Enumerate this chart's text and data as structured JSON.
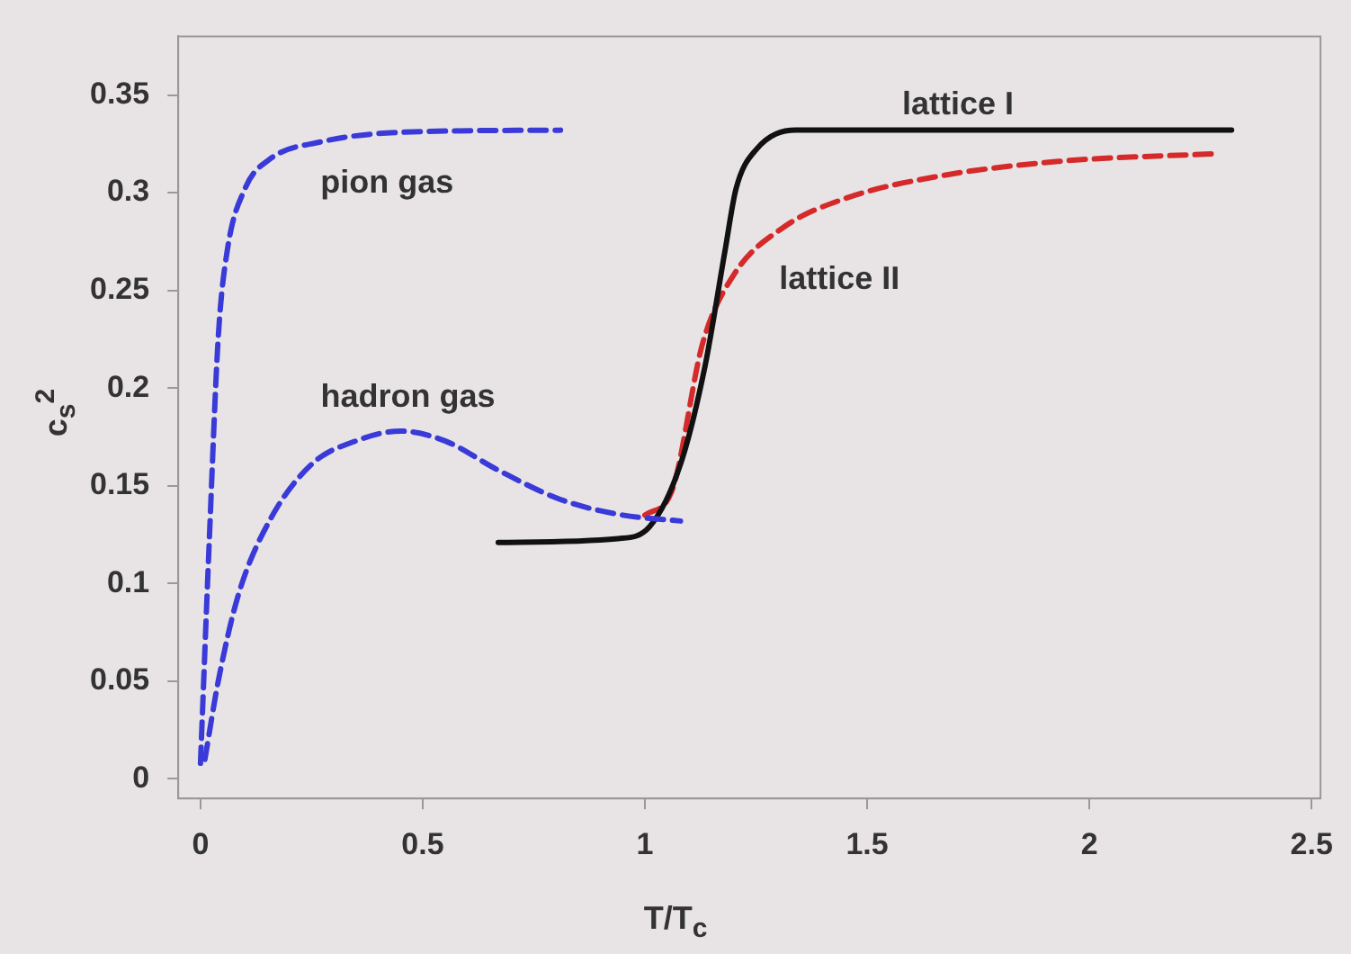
{
  "chart_data": {
    "type": "line",
    "xlabel": "T/T$_{c}$",
    "ylabel": "c$_{s}$$^{2}$",
    "xlim": [
      -0.05,
      2.52
    ],
    "xticks": [
      {
        "value": 0,
        "label": "0"
      },
      {
        "value": 0.5,
        "label": "0.5"
      },
      {
        "value": 1,
        "label": "1"
      },
      {
        "value": 1.5,
        "label": "1.5"
      },
      {
        "value": 2,
        "label": "2"
      },
      {
        "value": 2.5,
        "label": "2.5"
      }
    ],
    "ylim": [
      -0.01,
      0.38
    ],
    "yticks": [
      {
        "value": 0,
        "label": "0"
      },
      {
        "value": 0.05,
        "label": "0.05"
      },
      {
        "value": 0.1,
        "label": "0.1"
      },
      {
        "value": 0.15,
        "label": "0.15"
      },
      {
        "value": 0.2,
        "label": "0.2"
      },
      {
        "value": 0.25,
        "label": "0.25"
      },
      {
        "value": 0.3,
        "label": "0.3"
      },
      {
        "value": 0.35,
        "label": "0.35"
      }
    ],
    "grid": false,
    "marker": "none",
    "series": [
      {
        "name": "pion gas",
        "color": "#3a3ad8",
        "line_style": "dashed",
        "x": [
          0.0,
          0.02,
          0.04,
          0.06,
          0.1,
          0.155,
          0.27,
          0.46,
          0.81
        ],
        "values": [
          0.008,
          0.123,
          0.226,
          0.27,
          0.302,
          0.317,
          0.326,
          0.331,
          0.332
        ]
      },
      {
        "name": "hadron gas",
        "color": "#3a3ad8",
        "line_style": "dashed",
        "x": [
          0.01,
          0.04,
          0.085,
          0.155,
          0.25,
          0.35,
          0.45,
          0.55,
          0.67,
          0.81,
          0.95,
          1.08
        ],
        "values": [
          0.01,
          0.05,
          0.094,
          0.132,
          0.161,
          0.173,
          0.178,
          0.173,
          0.158,
          0.143,
          0.135,
          0.132
        ]
      },
      {
        "name": "lattice I",
        "color": "#111111",
        "line_style": "solid",
        "x": [
          0.67,
          0.94,
          1.01,
          1.08,
          1.135,
          1.18,
          1.205,
          1.25,
          1.34,
          2.32
        ],
        "values": [
          0.121,
          0.123,
          0.129,
          0.161,
          0.211,
          0.27,
          0.302,
          0.322,
          0.332,
          0.332
        ]
      },
      {
        "name": "lattice II",
        "color": "#d42a2a",
        "line_style": "dashed",
        "x": [
          1.0,
          1.06,
          1.13,
          1.2,
          1.31,
          1.45,
          1.65,
          1.93,
          2.29
        ],
        "values": [
          0.135,
          0.147,
          0.223,
          0.258,
          0.282,
          0.297,
          0.308,
          0.316,
          0.32
        ]
      }
    ]
  }
}
